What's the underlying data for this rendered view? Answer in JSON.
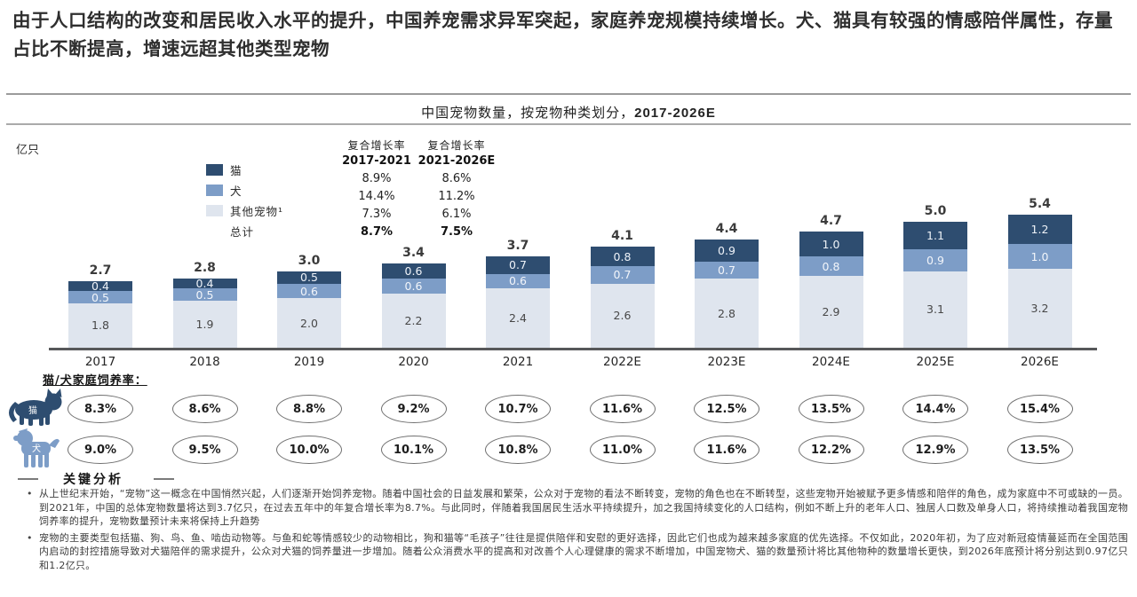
{
  "headline": "由于人口结构的改变和居民收入水平的提升，中国养宠需求异军突起，家庭养宠规模持续增长。犬、猫具有较强的情感陪伴属性，存量占比不断提高，增速远超其他类型宠物",
  "chart": {
    "title_prefix": "中国宠物数量，按宠物种类划分，",
    "title_bold": "2017-2026E",
    "unit_label": "亿只"
  },
  "chart_data": {
    "type": "bar",
    "stacked": true,
    "title": "中国宠物数量，按宠物种类划分，2017-2026E",
    "ylabel": "亿只",
    "grid": false,
    "legend_position": "top-left-of-plot",
    "categories": [
      "2017",
      "2018",
      "2019",
      "2020",
      "2021",
      "2022E",
      "2023E",
      "2024E",
      "2025E",
      "2026E"
    ],
    "series": [
      {
        "name": "猫",
        "color": "#2e4d70",
        "label_color": "#eef2f8",
        "values": [
          0.4,
          0.4,
          0.5,
          0.6,
          0.7,
          0.8,
          0.9,
          1.0,
          1.1,
          1.2
        ]
      },
      {
        "name": "犬",
        "color": "#7d9dc7",
        "label_color": "#f2f5fa",
        "values": [
          0.5,
          0.5,
          0.6,
          0.6,
          0.6,
          0.7,
          0.7,
          0.8,
          0.9,
          1.0
        ]
      },
      {
        "name": "其他宠物¹",
        "color": "#dfe5ee",
        "label_color": "#474747",
        "values": [
          1.8,
          1.9,
          2.0,
          2.2,
          2.4,
          2.6,
          2.8,
          2.9,
          3.1,
          3.2
        ]
      }
    ],
    "totals": [
      "2.7",
      "2.8",
      "3.0",
      "3.4",
      "3.7",
      "4.1",
      "4.4",
      "4.7",
      "5.0",
      "5.4"
    ],
    "legend_items": [
      {
        "label": "猫",
        "color": "#2e4d70"
      },
      {
        "label": "犬",
        "color": "#7d9dc7"
      },
      {
        "label": "其他宠物¹",
        "color": "#dfe5ee"
      },
      {
        "label": "总计",
        "color": null
      }
    ]
  },
  "cagr": {
    "col1": {
      "header_line1": "复合增长率",
      "header_line2": "2017-2021",
      "values": [
        "8.9%",
        "14.4%",
        "7.3%",
        "8.7%"
      ]
    },
    "col2": {
      "header_line1": "复合增长率",
      "header_line2": "2021-2026E",
      "values": [
        "8.6%",
        "11.2%",
        "6.1%",
        "7.5%"
      ]
    }
  },
  "ownership": {
    "heading": "猫/犬家庭饲养率：",
    "cat_icon_label": "猫",
    "dog_icon_label": "犬",
    "cat_rates": [
      "8.3%",
      "8.6%",
      "8.8%",
      "9.2%",
      "10.7%",
      "11.6%",
      "12.5%",
      "13.5%",
      "14.4%",
      "15.4%"
    ],
    "dog_rates": [
      "9.0%",
      "9.5%",
      "10.0%",
      "10.1%",
      "10.8%",
      "11.0%",
      "11.6%",
      "12.2%",
      "12.9%",
      "13.5%"
    ]
  },
  "analysis": {
    "heading": "关键分析",
    "bullets": [
      "从上世纪末开始，“宠物”这一概念在中国悄然兴起，人们逐渐开始饲养宠物。随着中国社会的日益发展和繁荣，公众对于宠物的看法不断转变，宠物的角色也在不断转型，这些宠物开始被赋予更多情感和陪伴的角色，成为家庭中不可或缺的一员。到2021年，中国的总体宠物数量将达到3.7亿只，在过去五年中的年复合增长率为8.7%。与此同时，伴随着我国居民生活水平持续提升，加之我国持续变化的人口结构，例如不断上升的老年人口、独居人口数及单身人口，将持续推动着我国宠物饲养率的提升，宠物数量预计未来将保持上升趋势",
      "宠物的主要类型包括猫、狗、鸟、鱼、啮齿动物等。与鱼和蛇等情感较少的动物相比，狗和猫等“毛孩子”往往是提供陪伴和安慰的更好选择，因此它们也成为越来越多家庭的优先选择。不仅如此，2020年初，为了应对新冠疫情蔓延而在全国范围内启动的封控措施导致对犬猫陪伴的需求提升，公众对犬猫的饲养量进一步增加。随着公众消费水平的提高和对改善个人心理健康的需求不断增加，中国宠物犬、猫的数量预计将比其他物种的数量增长更快，到2026年底预计将分别达到0.97亿只和1.2亿只。"
    ]
  }
}
